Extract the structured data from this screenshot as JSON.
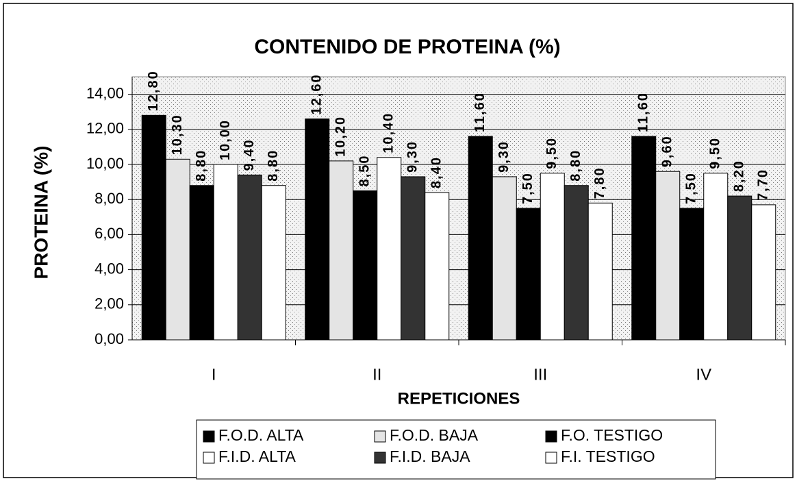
{
  "chart_data": {
    "type": "bar",
    "title": "CONTENIDO DE PROTEINA (%)",
    "x_label": "REPETICIONES",
    "y_label": "PROTEINA (%)",
    "categories": [
      "I",
      "II",
      "III",
      "IV"
    ],
    "series": [
      {
        "name": "F.O.D. ALTA",
        "color": "#000000",
        "values": [
          12.8,
          12.6,
          11.6,
          11.6
        ],
        "value_labels": [
          "12,80",
          "12,60",
          "11,60",
          "11,60"
        ]
      },
      {
        "name": "F.O.D. BAJA",
        "color": "#e4e4e4",
        "values": [
          10.3,
          10.2,
          9.3,
          9.6
        ],
        "value_labels": [
          "10,30",
          "10,20",
          "9,30",
          "9,60"
        ]
      },
      {
        "name": "F.O. TESTIGO",
        "color": "#000000",
        "values": [
          8.8,
          8.5,
          7.5,
          7.5
        ],
        "value_labels": [
          "8,80",
          "8,50",
          "7,50",
          "7,50"
        ]
      },
      {
        "name": "F.I.D. ALTA",
        "color": "#ffffff",
        "values": [
          10.0,
          10.4,
          9.5,
          9.5
        ],
        "value_labels": [
          "10,00",
          "10,40",
          "9,50",
          "9,50"
        ]
      },
      {
        "name": "F.I.D. BAJA",
        "color": "#333333",
        "values": [
          9.4,
          9.3,
          8.8,
          8.2
        ],
        "value_labels": [
          "9,40",
          "9,30",
          "8,80",
          "8,20"
        ]
      },
      {
        "name": "F.I. TESTIGO",
        "color": "#ffffff",
        "values": [
          8.8,
          8.4,
          7.8,
          7.7
        ],
        "value_labels": [
          "8,80",
          "8,40",
          "7,80",
          "7,70"
        ]
      }
    ],
    "ylim": [
      0,
      15
    ],
    "yticks": [
      {
        "value": 0,
        "label": "0,00"
      },
      {
        "value": 2,
        "label": "2,00"
      },
      {
        "value": 4,
        "label": "4,00"
      },
      {
        "value": 6,
        "label": "6,00"
      },
      {
        "value": 8,
        "label": "8,00"
      },
      {
        "value": 10,
        "label": "10,00"
      },
      {
        "value": 12,
        "label": "12,00"
      },
      {
        "value": 14,
        "label": "14,00"
      }
    ],
    "grid": true,
    "legend": "bottom"
  }
}
